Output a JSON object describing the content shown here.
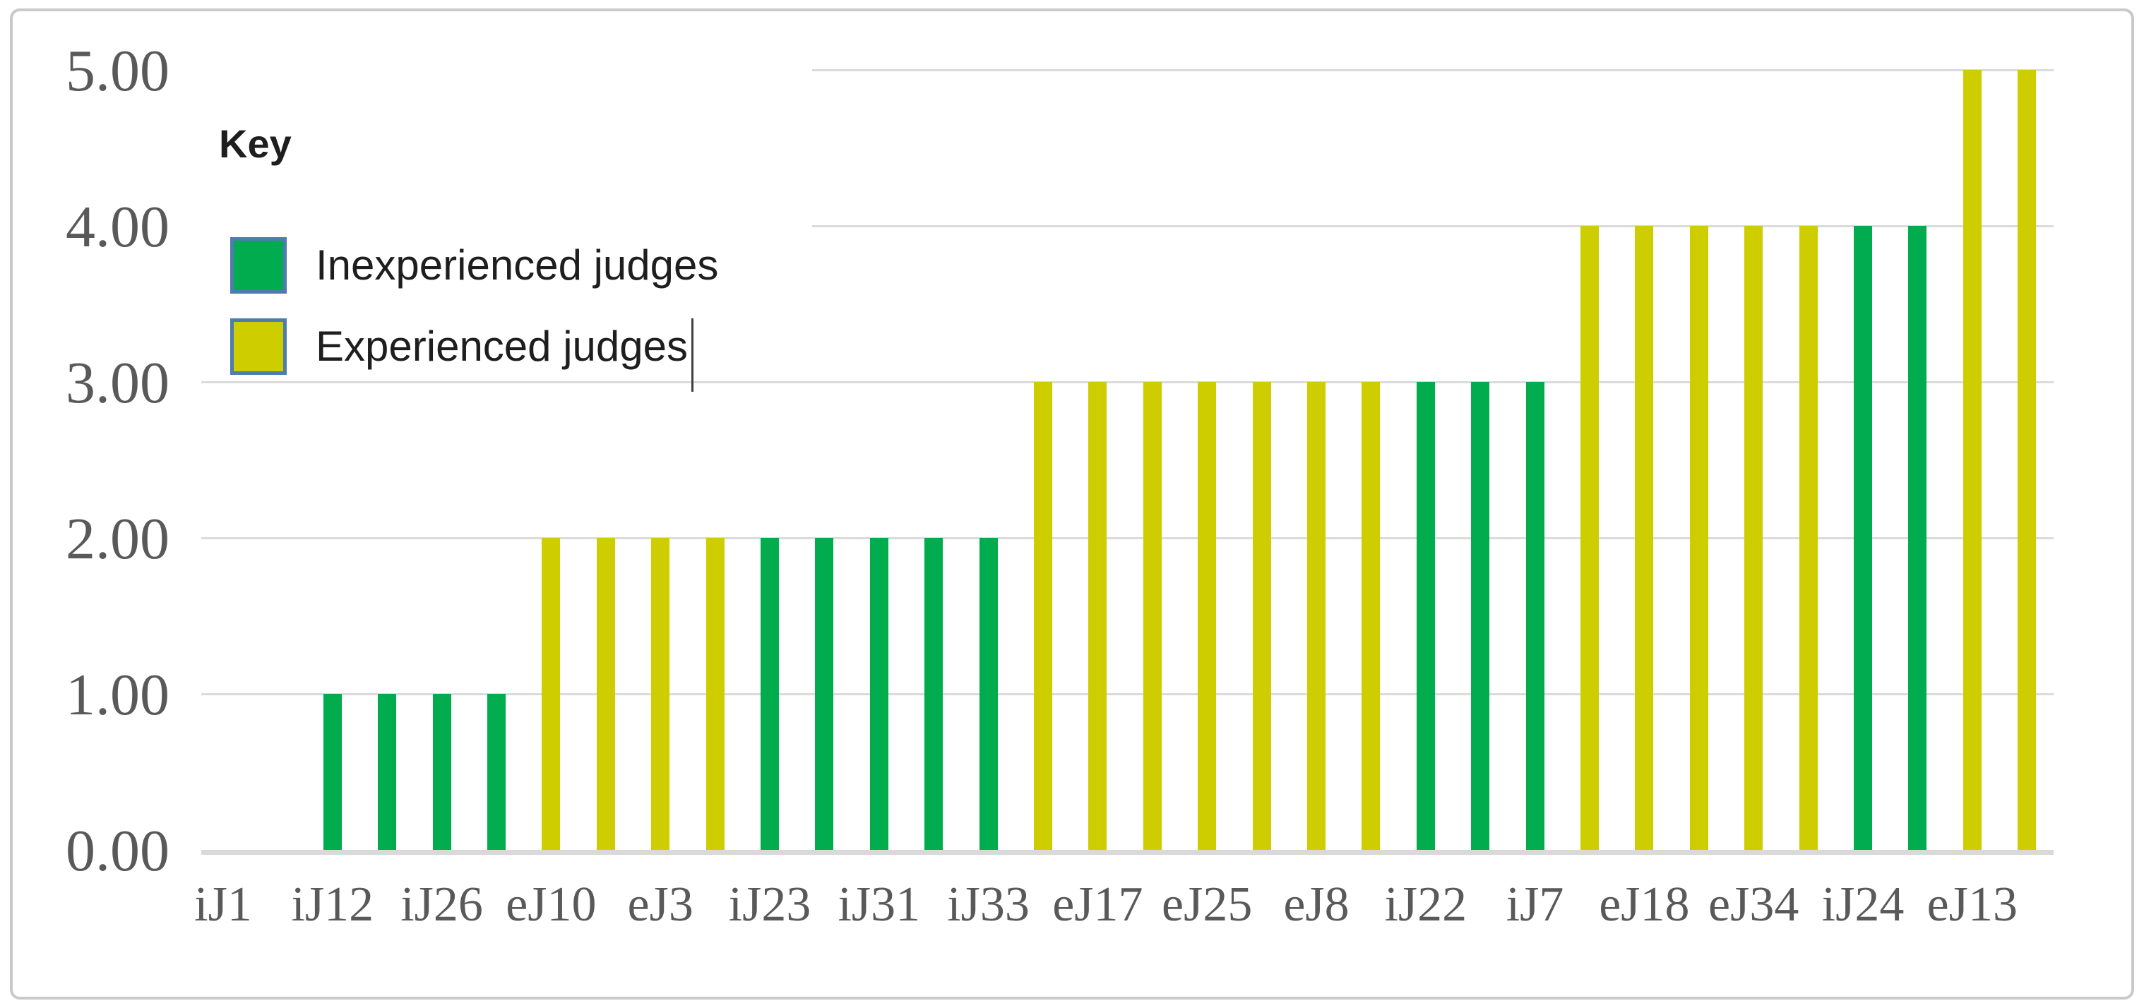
{
  "legend": {
    "title": "Key",
    "items": [
      {
        "label": "Inexperienced judges",
        "color": "#00AC4E"
      },
      {
        "label": "Experienced judges",
        "color": "#CDCD00"
      }
    ],
    "swatch_border_color": "#4E7CAE",
    "text_cursor_after_item_index": 1
  },
  "chart_data": {
    "type": "bar",
    "title": "",
    "xlabel": "",
    "ylabel": "",
    "ylim": [
      0,
      5
    ],
    "ytick_labels": [
      "0.00",
      "1.00",
      "2.00",
      "3.00",
      "4.00",
      "5.00"
    ],
    "grid": "horizontal-gridlines",
    "legend_position": "top-left-inside",
    "x_tick_labels": [
      "iJ1",
      "iJ12",
      "iJ26",
      "eJ10",
      "eJ3",
      "iJ23",
      "iJ31",
      "iJ33",
      "eJ17",
      "eJ25",
      "eJ8",
      "iJ22",
      "iJ7",
      "eJ18",
      "eJ34",
      "iJ24",
      "eJ13"
    ],
    "series": [
      {
        "name": "Inexperienced judges",
        "color": "#00AC4E"
      },
      {
        "name": "Experienced judges",
        "color": "#CDCD00"
      }
    ],
    "slots_per_labelled_judge": 2,
    "total_slots": 34,
    "bars": [
      {
        "slot": 2,
        "value": 1,
        "series": 0
      },
      {
        "slot": 3,
        "value": 1,
        "series": 0
      },
      {
        "slot": 4,
        "value": 1,
        "series": 0
      },
      {
        "slot": 5,
        "value": 1,
        "series": 0
      },
      {
        "slot": 6,
        "value": 2,
        "series": 1
      },
      {
        "slot": 7,
        "value": 2,
        "series": 1
      },
      {
        "slot": 8,
        "value": 2,
        "series": 1
      },
      {
        "slot": 9,
        "value": 2,
        "series": 1
      },
      {
        "slot": 10,
        "value": 2,
        "series": 0
      },
      {
        "slot": 11,
        "value": 2,
        "series": 0
      },
      {
        "slot": 12,
        "value": 2,
        "series": 0
      },
      {
        "slot": 13,
        "value": 2,
        "series": 0
      },
      {
        "slot": 14,
        "value": 2,
        "series": 0
      },
      {
        "slot": 15,
        "value": 3,
        "series": 1
      },
      {
        "slot": 16,
        "value": 3,
        "series": 1
      },
      {
        "slot": 17,
        "value": 3,
        "series": 1
      },
      {
        "slot": 18,
        "value": 3,
        "series": 1
      },
      {
        "slot": 19,
        "value": 3,
        "series": 1
      },
      {
        "slot": 20,
        "value": 3,
        "series": 1
      },
      {
        "slot": 21,
        "value": 3,
        "series": 1
      },
      {
        "slot": 22,
        "value": 3,
        "series": 0
      },
      {
        "slot": 23,
        "value": 3,
        "series": 0
      },
      {
        "slot": 24,
        "value": 3,
        "series": 0
      },
      {
        "slot": 25,
        "value": 4,
        "series": 1
      },
      {
        "slot": 26,
        "value": 4,
        "series": 1
      },
      {
        "slot": 27,
        "value": 4,
        "series": 1
      },
      {
        "slot": 28,
        "value": 4,
        "series": 1
      },
      {
        "slot": 29,
        "value": 4,
        "series": 1
      },
      {
        "slot": 30,
        "value": 4,
        "series": 0
      },
      {
        "slot": 31,
        "value": 4,
        "series": 0
      },
      {
        "slot": 32,
        "value": 5,
        "series": 1
      },
      {
        "slot": 33,
        "value": 5,
        "series": 1
      }
    ],
    "labelled_judge_values": {
      "iJ1": 0,
      "iJ12": 1,
      "iJ26": 1,
      "eJ10": 2,
      "eJ3": 2,
      "iJ23": 2,
      "iJ31": 2,
      "iJ33": 2,
      "eJ17": 3,
      "eJ25": 3,
      "eJ8": 3,
      "iJ22": 3,
      "iJ7": 3,
      "eJ18": 4,
      "eJ34": 4,
      "iJ24": 4,
      "eJ13": 5
    }
  },
  "colors": {
    "inexperienced_green": "#00AC4E",
    "experienced_yellow": "#CDCD00",
    "swatch_border_blue": "#4E7CAE",
    "gridline": "#DBDBDB",
    "baseline": "#D9D9D9",
    "axis_text": "#595959",
    "legend_text": "#1E1E1E",
    "text_cursor": "#404040",
    "frame_border": "#C9C9C9"
  }
}
